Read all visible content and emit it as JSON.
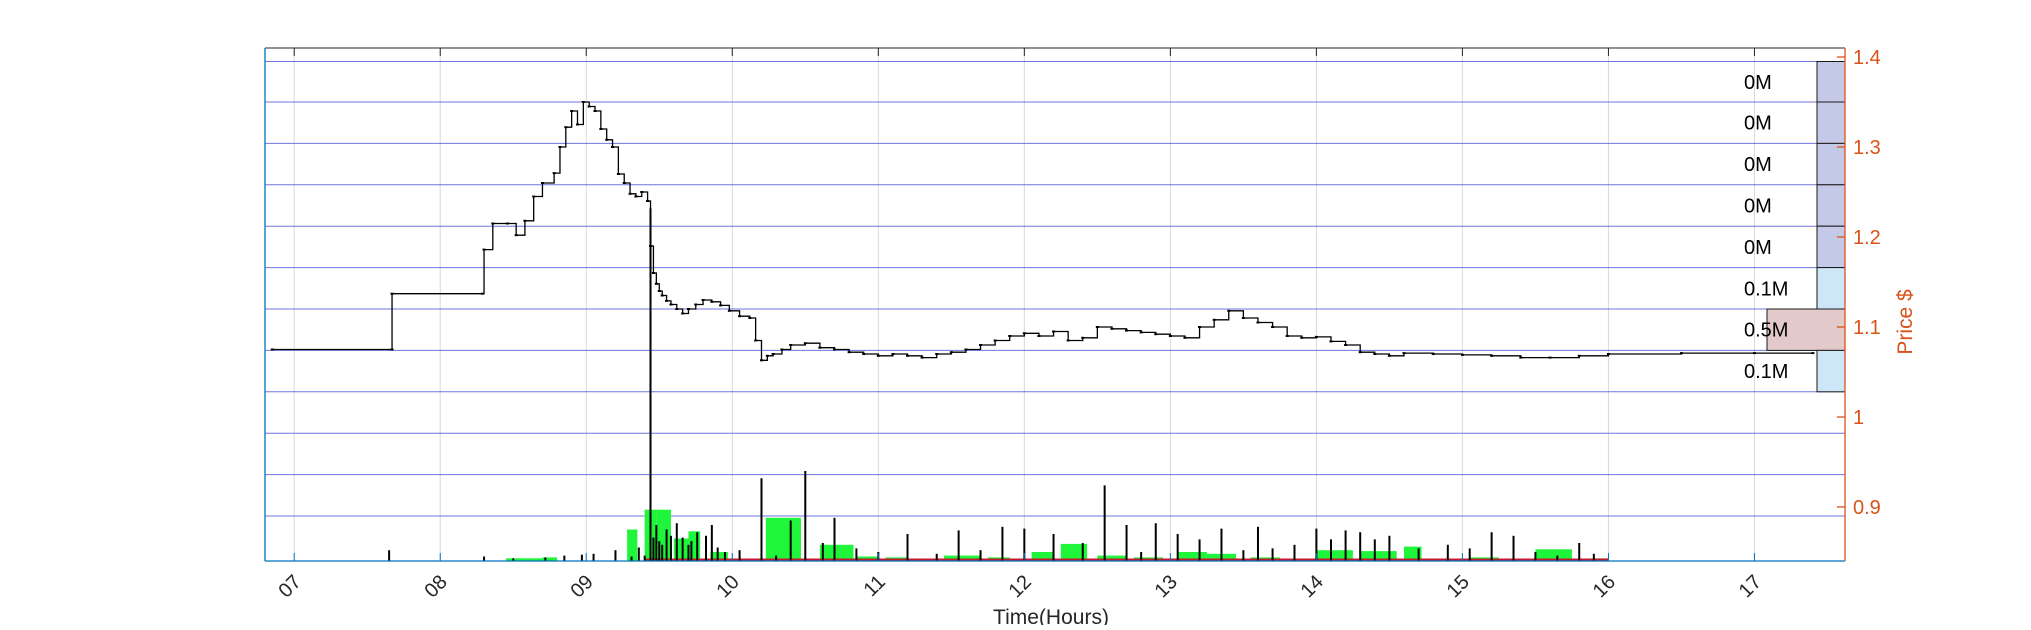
{
  "chart_data": {
    "type": "line",
    "title": "",
    "xlabel": "Time(Hours)",
    "ylabel": "Price $",
    "x_ticks": [
      "07",
      "08",
      "09",
      "10",
      "11",
      "12",
      "13",
      "14",
      "15",
      "16",
      "17"
    ],
    "y_ticks": [
      "0.9",
      "1",
      "1.1",
      "1.2",
      "1.3",
      "1.4"
    ],
    "xlim": [
      6.8,
      17.62
    ],
    "ylim": [
      0.84,
      1.41
    ],
    "grid": true,
    "price_series": {
      "name": "",
      "x": [
        6.85,
        7.67,
        7.67,
        8.29,
        8.3,
        8.36,
        8.46,
        8.52,
        8.58,
        8.64,
        8.7,
        8.78,
        8.82,
        8.86,
        8.9,
        8.94,
        8.98,
        9.02,
        9.06,
        9.1,
        9.14,
        9.18,
        9.22,
        9.26,
        9.3,
        9.34,
        9.38,
        9.42,
        9.44,
        9.46,
        9.48,
        9.5,
        9.52,
        9.55,
        9.58,
        9.62,
        9.66,
        9.7,
        9.75,
        9.8,
        9.86,
        9.92,
        9.98,
        10.05,
        10.12,
        10.16,
        10.2,
        10.24,
        10.28,
        10.34,
        10.4,
        10.5,
        10.6,
        10.7,
        10.8,
        10.9,
        11.0,
        11.1,
        11.2,
        11.3,
        11.4,
        11.5,
        11.6,
        11.7,
        11.8,
        11.9,
        12.0,
        12.1,
        12.2,
        12.3,
        12.4,
        12.5,
        12.6,
        12.7,
        12.8,
        12.9,
        13.0,
        13.1,
        13.2,
        13.3,
        13.4,
        13.5,
        13.6,
        13.7,
        13.8,
        13.9,
        14.0,
        14.1,
        14.2,
        14.3,
        14.4,
        14.5,
        14.6,
        14.8,
        15.0,
        15.2,
        15.4,
        15.6,
        15.8,
        16.0,
        16.5,
        17.0,
        17.4
      ],
      "y": [
        1.075,
        1.075,
        1.137,
        1.137,
        1.186,
        1.215,
        1.215,
        1.202,
        1.218,
        1.245,
        1.26,
        1.271,
        1.3,
        1.322,
        1.34,
        1.325,
        1.35,
        1.345,
        1.34,
        1.32,
        1.308,
        1.3,
        1.27,
        1.26,
        1.248,
        1.245,
        1.25,
        1.24,
        1.19,
        1.16,
        1.148,
        1.14,
        1.135,
        1.129,
        1.125,
        1.12,
        1.115,
        1.12,
        1.125,
        1.13,
        1.128,
        1.124,
        1.118,
        1.112,
        1.11,
        1.085,
        1.063,
        1.068,
        1.07,
        1.075,
        1.08,
        1.082,
        1.077,
        1.075,
        1.072,
        1.07,
        1.068,
        1.07,
        1.068,
        1.066,
        1.07,
        1.072,
        1.075,
        1.08,
        1.085,
        1.09,
        1.093,
        1.09,
        1.095,
        1.085,
        1.088,
        1.1,
        1.098,
        1.096,
        1.094,
        1.092,
        1.09,
        1.088,
        1.1,
        1.108,
        1.118,
        1.11,
        1.105,
        1.1,
        1.09,
        1.088,
        1.089,
        1.084,
        1.08,
        1.072,
        1.07,
        1.068,
        1.071,
        1.07,
        1.069,
        1.068,
        1.066,
        1.066,
        1.068,
        1.07,
        1.071,
        1.071,
        1.071
      ]
    },
    "volume_profile": {
      "labels": [
        "0M",
        "0M",
        "0M",
        "0M",
        "0M",
        "0.1M",
        "0.5M",
        "0.1M"
      ],
      "price_bins": [
        [
          1.35,
          1.395
        ],
        [
          1.304,
          1.35
        ],
        [
          1.258,
          1.304
        ],
        [
          1.212,
          1.258
        ],
        [
          1.166,
          1.212
        ],
        [
          1.12,
          1.166
        ],
        [
          1.074,
          1.12
        ],
        [
          1.028,
          1.074
        ]
      ],
      "values": [
        0.02,
        0.02,
        0.02,
        0.02,
        0.02,
        0.1,
        0.5,
        0.1
      ],
      "colors": [
        "#c5c9e8",
        "#c5c9e8",
        "#c5c9e8",
        "#c5c9e8",
        "#c5c9e8",
        "#cde6f8",
        "#e3c9c9",
        "#cde6f8"
      ]
    },
    "volume_bars_green": {
      "start": [
        8.45,
        8.7,
        9.28,
        9.4,
        9.48,
        9.6,
        9.7,
        9.85,
        10.23,
        10.6,
        10.85,
        11.05,
        11.45,
        11.75,
        12.05,
        12.25,
        12.5,
        12.75,
        13.05,
        13.25,
        13.55,
        13.75,
        14.0,
        14.3,
        14.6,
        14.75,
        15.05,
        15.25,
        15.5,
        15.9
      ],
      "end": [
        8.7,
        8.8,
        9.35,
        9.48,
        9.58,
        9.7,
        9.78,
        9.97,
        10.47,
        10.83,
        11.0,
        11.2,
        11.7,
        11.9,
        12.2,
        12.43,
        12.7,
        12.95,
        13.25,
        13.45,
        13.75,
        13.95,
        14.25,
        14.55,
        14.72,
        14.95,
        15.25,
        15.45,
        15.75,
        16.0
      ],
      "height": [
        0.003,
        0.004,
        0.035,
        0.057,
        0.057,
        0.025,
        0.033,
        0.01,
        0.048,
        0.018,
        0.005,
        0.004,
        0.006,
        0.004,
        0.01,
        0.019,
        0.006,
        0.004,
        0.01,
        0.008,
        0.004,
        0.002,
        0.012,
        0.011,
        0.016,
        0.001,
        0.004,
        0.002,
        0.013,
        0.003
      ]
    },
    "volume_spikes": {
      "x": [
        7.65,
        8.3,
        8.5,
        8.72,
        8.85,
        8.97,
        9.05,
        9.2,
        9.31,
        9.36,
        9.4,
        9.44,
        9.46,
        9.48,
        9.5,
        9.52,
        9.55,
        9.58,
        9.62,
        9.66,
        9.7,
        9.72,
        9.76,
        9.82,
        9.86,
        9.9,
        9.95,
        10.05,
        10.2,
        10.3,
        10.4,
        10.5,
        10.62,
        10.7,
        10.85,
        11.0,
        11.2,
        11.4,
        11.55,
        11.7,
        11.85,
        12.0,
        12.2,
        12.4,
        12.55,
        12.7,
        12.8,
        12.9,
        13.05,
        13.2,
        13.35,
        13.5,
        13.6,
        13.7,
        13.85,
        14.0,
        14.1,
        14.2,
        14.3,
        14.4,
        14.5,
        14.7,
        14.9,
        15.05,
        15.2,
        15.35,
        15.5,
        15.65,
        15.8,
        15.9
      ],
      "height": [
        0.012,
        0.005,
        0.003,
        0.004,
        0.006,
        0.007,
        0.008,
        0.012,
        0.005,
        0.015,
        0.006,
        0.392,
        0.026,
        0.04,
        0.022,
        0.018,
        0.035,
        0.028,
        0.042,
        0.026,
        0.018,
        0.022,
        0.032,
        0.028,
        0.04,
        0.015,
        0.01,
        0.012,
        0.092,
        0.006,
        0.045,
        0.1,
        0.02,
        0.048,
        0.014,
        0.01,
        0.03,
        0.008,
        0.034,
        0.012,
        0.038,
        0.036,
        0.03,
        0.02,
        0.084,
        0.04,
        0.01,
        0.042,
        0.03,
        0.024,
        0.036,
        0.012,
        0.038,
        0.014,
        0.018,
        0.036,
        0.024,
        0.034,
        0.032,
        0.024,
        0.028,
        0.014,
        0.018,
        0.014,
        0.032,
        0.028,
        0.01,
        0.006,
        0.02,
        0.008
      ]
    },
    "colors": {
      "price": "#000000",
      "grid": "#4a54d6",
      "axis_right": "#d95319",
      "axis_box": "#0072bd",
      "volume_green": "#1ff53b",
      "volume_red": "#c9172e",
      "axis_black": "#262626"
    }
  }
}
